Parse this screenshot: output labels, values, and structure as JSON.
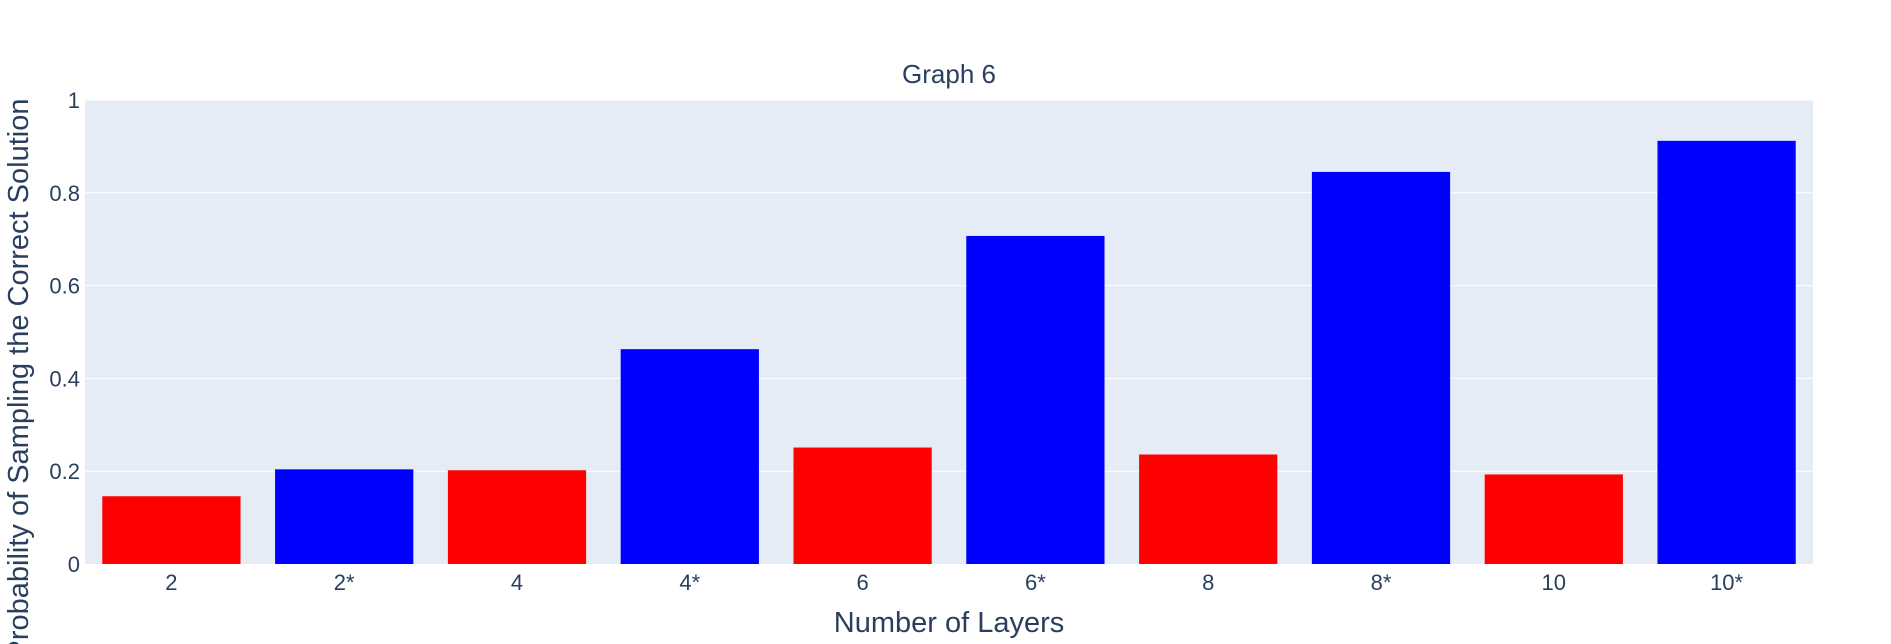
{
  "chart_data": {
    "type": "bar",
    "title": "Graph 6",
    "xlabel": "Number of Layers",
    "ylabel": "Probability of Sampling the Correct Solution",
    "categories": [
      "2",
      "2*",
      "4",
      "4*",
      "6",
      "6*",
      "8",
      "8*",
      "10",
      "10*"
    ],
    "values": [
      0.146,
      0.204,
      0.202,
      0.463,
      0.251,
      0.707,
      0.236,
      0.845,
      0.193,
      0.912
    ],
    "bar_colors": [
      "#ff0000",
      "#0000ff",
      "#ff0000",
      "#0000ff",
      "#ff0000",
      "#0000ff",
      "#ff0000",
      "#0000ff",
      "#ff0000",
      "#0000ff"
    ],
    "ylim": [
      0,
      1
    ],
    "yticks": [
      0,
      0.2,
      0.4,
      0.6,
      0.8,
      1
    ],
    "ytick_labels": [
      "0",
      "0.2",
      "0.4",
      "0.6",
      "0.8",
      "1"
    ],
    "grid": true,
    "legend": false,
    "colors": {
      "plot_bg": "#e5ecf6",
      "grid": "#ffffff",
      "text": "#2a3f5f"
    }
  }
}
